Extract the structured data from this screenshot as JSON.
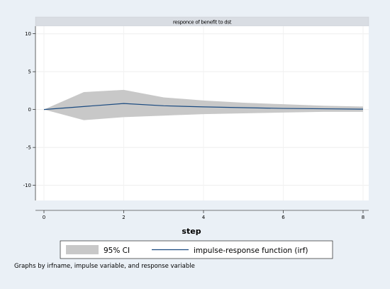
{
  "chart_data": {
    "type": "line",
    "title": "responce of benefit to dst",
    "xlabel": "step",
    "ylabel": "",
    "x": [
      0,
      1,
      2,
      3,
      4,
      5,
      6,
      7,
      8
    ],
    "xlim": [
      0,
      8
    ],
    "ylim": [
      -12,
      11
    ],
    "xticks": [
      0,
      2,
      4,
      6,
      8
    ],
    "yticks": [
      10,
      5,
      0,
      -5,
      -10
    ],
    "grid": true,
    "legend_position": "bottom",
    "series": [
      {
        "name": "95% CI",
        "kind": "band",
        "lower": [
          0,
          -1.4,
          -1.0,
          -0.8,
          -0.6,
          -0.5,
          -0.4,
          -0.3,
          -0.3
        ],
        "upper": [
          0,
          2.3,
          2.6,
          1.6,
          1.2,
          0.9,
          0.7,
          0.5,
          0.4
        ],
        "color": "#c8c8c8"
      },
      {
        "name": "impulse-response function (irf)",
        "kind": "line",
        "values": [
          0,
          0.4,
          0.8,
          0.5,
          0.35,
          0.25,
          0.15,
          0.1,
          0.05
        ],
        "color": "#1a4a80"
      }
    ],
    "note": "Graphs by irfname, impulse variable, and response variable"
  }
}
